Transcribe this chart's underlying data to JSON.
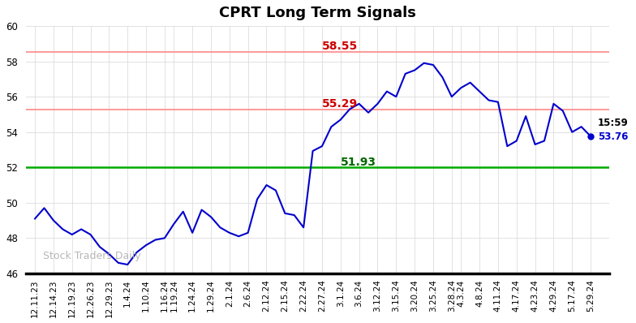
{
  "title": "CPRT Long Term Signals",
  "x_labels": [
    "12.11.23",
    "12.14.23",
    "12.19.23",
    "12.26.23",
    "12.29.23",
    "1.4.24",
    "1.10.24",
    "1.16.24",
    "1.19.24",
    "1.24.24",
    "1.29.24",
    "2.1.24",
    "2.6.24",
    "2.12.24",
    "2.15.24",
    "2.22.24",
    "2.27.24",
    "3.1.24",
    "3.6.24",
    "3.12.24",
    "3.15.24",
    "3.20.24",
    "3.25.24",
    "3.28.24",
    "4.3.24",
    "4.8.24",
    "4.11.24",
    "4.17.24",
    "4.23.24",
    "4.29.24",
    "5.17.24",
    "5.29.24"
  ],
  "series_y": [
    49.1,
    49.7,
    49.0,
    48.5,
    48.2,
    48.5,
    48.2,
    47.5,
    47.1,
    46.6,
    46.5,
    47.2,
    47.6,
    47.9,
    48.0,
    48.8,
    49.5,
    48.3,
    49.6,
    49.2,
    48.6,
    48.3,
    48.1,
    48.3,
    50.2,
    51.0,
    50.7,
    49.4,
    49.3,
    48.6,
    52.93,
    53.2,
    54.3,
    54.7,
    55.3,
    55.6,
    55.1,
    55.6,
    56.3,
    56.0,
    57.3,
    57.5,
    57.9,
    57.8,
    57.1,
    56.0,
    56.5,
    56.8,
    56.3,
    55.8,
    55.7,
    53.2,
    53.5,
    54.9,
    53.3,
    53.5,
    55.6,
    55.2,
    54.0,
    54.3,
    53.76
  ],
  "line_color": "#0000CC",
  "hline_green": 52.0,
  "hline_red1": 55.29,
  "hline_red2": 58.55,
  "green_line_color": "#00AA00",
  "red_line_color": "#FF8888",
  "label_55_29": "55.29",
  "label_58_55": "58.55",
  "label_51_93": "51.93",
  "label_15_59": "15:59",
  "label_53_76": "53.76",
  "annotation_color_red": "#CC0000",
  "annotation_color_green": "#006600",
  "annotation_color_blue": "#0000CC",
  "watermark_text": "Stock Traders Daily",
  "watermark_color": "#AAAAAA",
  "ylim_min": 46,
  "ylim_max": 60,
  "yticks": [
    46,
    48,
    50,
    52,
    54,
    56,
    58,
    60
  ],
  "background_color": "#FFFFFF",
  "grid_color": "#DDDDDD",
  "ann_5855_label_idx": 16,
  "ann_5529_label_idx": 16,
  "ann_5193_label_idx": 17
}
